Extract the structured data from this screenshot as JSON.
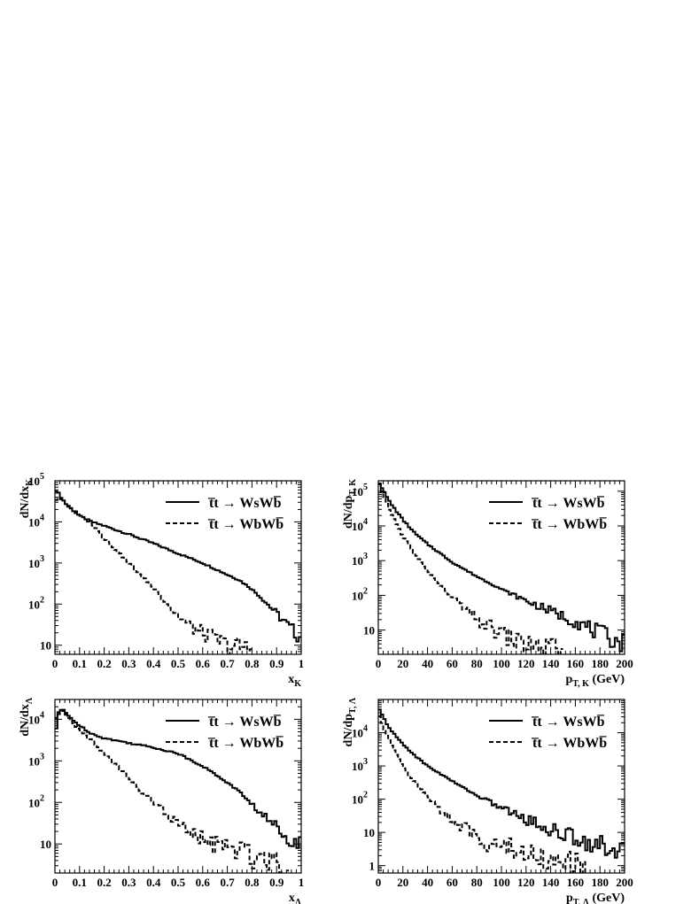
{
  "colors": {
    "line": "#000000",
    "background": "#ffffff"
  },
  "legend": {
    "entries": [
      {
        "label": "t̅t → WsWb̅",
        "style": "solid"
      },
      {
        "label": "t̅t → WbWb̅",
        "style": "dashed"
      }
    ]
  },
  "chart_data": [
    {
      "type": "line",
      "panel": "top-left",
      "ylabel": "dN/dx",
      "ylabel_sub": "K",
      "xlabel": "x",
      "xlabel_sub": "K",
      "yscale": "log",
      "xlim": [
        0,
        1
      ],
      "ylim": [
        6,
        100000
      ],
      "xticks": [
        0,
        0.1,
        0.2,
        0.3,
        0.4,
        0.5,
        0.6,
        0.7,
        0.8,
        0.9,
        1
      ],
      "xtick_labels": [
        "0",
        "0.1",
        "0.2",
        "0.3",
        "0.4",
        "0.5",
        "0.6",
        "0.7",
        "0.8",
        "0.9",
        "1"
      ],
      "yticks": [
        10,
        100,
        1000,
        10000,
        100000
      ],
      "ytick_labels": [
        "10",
        "10^2",
        "10^3",
        "10^4",
        "10^5"
      ],
      "legend_position": "top-right",
      "series": [
        {
          "name": "t̅t → WsWb̅",
          "style": "solid",
          "x": [
            0,
            0.01,
            0.03,
            0.05,
            0.1,
            0.15,
            0.2,
            0.3,
            0.4,
            0.5,
            0.6,
            0.7,
            0.75,
            0.8,
            0.85,
            0.9,
            0.95,
            1.0
          ],
          "y": [
            60000,
            55000,
            36000,
            25000,
            14000,
            10000,
            8000,
            5000,
            3000,
            1700,
            1000,
            520,
            380,
            230,
            120,
            60,
            28,
            15
          ]
        },
        {
          "name": "t̅t → WbWb̅",
          "style": "dashed",
          "x": [
            0,
            0.01,
            0.03,
            0.05,
            0.1,
            0.15,
            0.2,
            0.25,
            0.3,
            0.35,
            0.4,
            0.45,
            0.5,
            0.55,
            0.6,
            0.65,
            0.7,
            0.75,
            0.8
          ],
          "y": [
            30000,
            40000,
            35000,
            25000,
            15000,
            9000,
            4000,
            2000,
            1000,
            500,
            250,
            110,
            50,
            28,
            20,
            14,
            10,
            9,
            8
          ]
        }
      ]
    },
    {
      "type": "line",
      "panel": "top-right",
      "ylabel": "dN/dp",
      "ylabel_sub": "T, K",
      "xlabel": "p",
      "xlabel_sub": "T, K",
      "xlabel_unit": "(GeV)",
      "yscale": "log",
      "xlim": [
        0,
        200
      ],
      "ylim": [
        2,
        200000
      ],
      "xticks": [
        0,
        20,
        40,
        60,
        80,
        100,
        120,
        140,
        160,
        180,
        200
      ],
      "xtick_labels": [
        "0",
        "20",
        "40",
        "60",
        "80",
        "100",
        "120",
        "140",
        "160",
        "180",
        "200"
      ],
      "yticks": [
        10,
        100,
        1000,
        10000,
        100000
      ],
      "ytick_labels": [
        "10",
        "10^2",
        "10^3",
        "10^4",
        "10^5"
      ],
      "legend_position": "top-right",
      "series": [
        {
          "name": "t̅t → WsWb̅",
          "style": "solid",
          "x": [
            0,
            2,
            5,
            10,
            20,
            30,
            40,
            60,
            80,
            100,
            120,
            140,
            160,
            180,
            200
          ],
          "y": [
            200000,
            150000,
            90000,
            45000,
            15000,
            6000,
            3000,
            900,
            350,
            150,
            70,
            35,
            18,
            8,
            4
          ]
        },
        {
          "name": "t̅t → WbWb̅",
          "style": "dashed",
          "x": [
            0,
            2,
            5,
            10,
            20,
            30,
            40,
            50,
            60,
            70,
            80,
            90,
            100,
            110,
            120,
            130,
            140,
            150
          ],
          "y": [
            200000,
            120000,
            60000,
            25000,
            5000,
            1500,
            500,
            200,
            90,
            40,
            20,
            12,
            8,
            5,
            4,
            3,
            3,
            2
          ]
        }
      ]
    },
    {
      "type": "line",
      "panel": "bottom-left",
      "ylabel": "dN/dx",
      "ylabel_sub": "Λ",
      "xlabel": "x",
      "xlabel_sub": "Λ",
      "yscale": "log",
      "xlim": [
        0,
        1
      ],
      "ylim": [
        2,
        30000
      ],
      "xticks": [
        0,
        0.1,
        0.2,
        0.3,
        0.4,
        0.5,
        0.6,
        0.7,
        0.8,
        0.9,
        1
      ],
      "xtick_labels": [
        "0",
        "0.1",
        "0.2",
        "0.3",
        "0.4",
        "0.5",
        "0.6",
        "0.7",
        "0.8",
        "0.9",
        "1"
      ],
      "yticks": [
        10,
        100,
        1000,
        10000
      ],
      "ytick_labels": [
        "10",
        "10^2",
        "10^3",
        "10^4"
      ],
      "legend_position": "top-right",
      "series": [
        {
          "name": "t̅t → WsWb̅",
          "style": "solid",
          "x": [
            0,
            0.01,
            0.03,
            0.05,
            0.1,
            0.15,
            0.2,
            0.3,
            0.4,
            0.5,
            0.6,
            0.7,
            0.75,
            0.8,
            0.85,
            0.9,
            0.95,
            1.0
          ],
          "y": [
            3000,
            12000,
            18000,
            13000,
            7000,
            4500,
            3500,
            2700,
            2100,
            1500,
            750,
            300,
            180,
            90,
            45,
            25,
            15,
            10
          ]
        },
        {
          "name": "t̅t → WbWb̅",
          "style": "dashed",
          "x": [
            0,
            0.01,
            0.03,
            0.05,
            0.1,
            0.15,
            0.2,
            0.25,
            0.3,
            0.35,
            0.4,
            0.45,
            0.5,
            0.55,
            0.6,
            0.65,
            0.7,
            0.75,
            0.8,
            0.85,
            0.9,
            0.95
          ],
          "y": [
            8000,
            14000,
            17000,
            11000,
            5500,
            3000,
            1500,
            800,
            400,
            180,
            100,
            55,
            30,
            18,
            12,
            10,
            8,
            7,
            5,
            5,
            4,
            3
          ]
        }
      ]
    },
    {
      "type": "line",
      "panel": "bottom-right",
      "ylabel": "dN/dp",
      "ylabel_sub": "T, Λ",
      "xlabel": "p",
      "xlabel_sub": "T, Λ",
      "xlabel_unit": "(GeV)",
      "yscale": "log",
      "xlim": [
        0,
        200
      ],
      "ylim": [
        0.6,
        100000
      ],
      "xticks": [
        0,
        20,
        40,
        60,
        80,
        100,
        120,
        140,
        160,
        180,
        200
      ],
      "xtick_labels": [
        "0",
        "20",
        "40",
        "60",
        "80",
        "100",
        "120",
        "140",
        "160",
        "180",
        "200"
      ],
      "yticks": [
        1,
        10,
        100,
        1000,
        10000
      ],
      "ytick_labels": [
        "1",
        "10",
        "10^2",
        "10^3",
        "10^4"
      ],
      "legend_position": "top-right",
      "series": [
        {
          "name": "t̅t → WsWb̅",
          "style": "solid",
          "x": [
            0,
            2,
            5,
            10,
            20,
            30,
            40,
            60,
            80,
            100,
            120,
            140,
            160,
            180,
            200
          ],
          "y": [
            60000,
            40000,
            25000,
            12000,
            4500,
            2000,
            1000,
            350,
            130,
            55,
            25,
            12,
            7,
            4,
            3
          ]
        },
        {
          "name": "t̅t → WbWb̅",
          "style": "dashed",
          "x": [
            0,
            2,
            5,
            10,
            20,
            30,
            40,
            50,
            60,
            70,
            80,
            90,
            100,
            110,
            120,
            130,
            140,
            150,
            160,
            170
          ],
          "y": [
            40000,
            25000,
            12000,
            5000,
            1000,
            300,
            120,
            50,
            25,
            12,
            7,
            5,
            4,
            3,
            2.5,
            2,
            1.5,
            1.2,
            1,
            0.8
          ]
        }
      ]
    }
  ]
}
